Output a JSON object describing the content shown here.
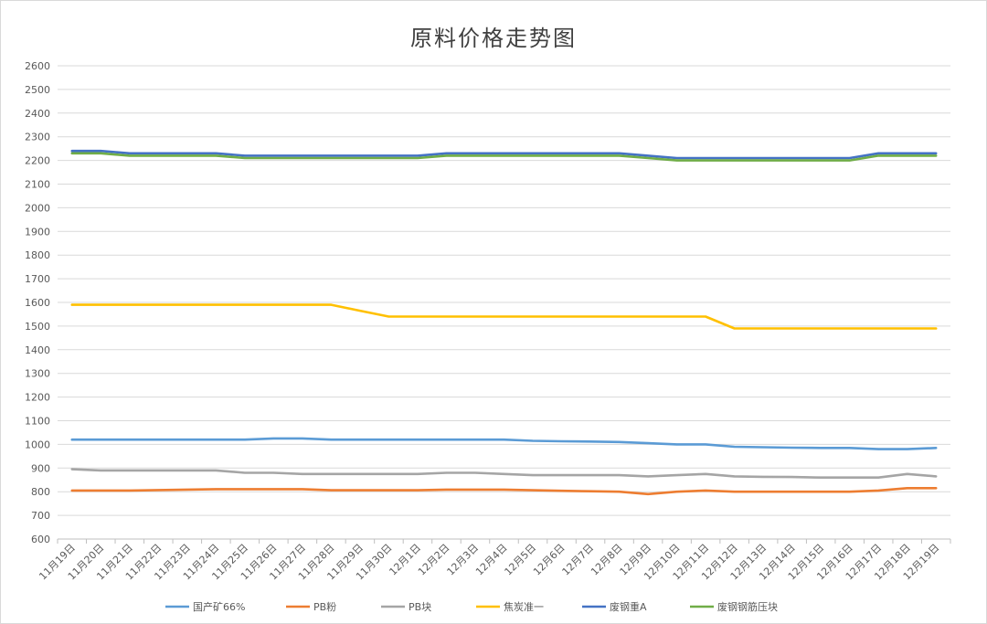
{
  "chart_data": {
    "type": "line",
    "title": "原料价格走势图",
    "xlabel": "",
    "ylabel": "",
    "ylim": [
      600,
      2600
    ],
    "ytick_step": 100,
    "grid": true,
    "legend_position": "bottom",
    "categories": [
      "11月19日",
      "11月20日",
      "11月21日",
      "11月22日",
      "11月23日",
      "11月24日",
      "11月25日",
      "11月26日",
      "11月27日",
      "11月28日",
      "11月29日",
      "11月30日",
      "12月1日",
      "12月2日",
      "12月3日",
      "12月4日",
      "12月5日",
      "12月6日",
      "12月7日",
      "12月8日",
      "12月9日",
      "12月10日",
      "12月11日",
      "12月12日",
      "12月13日",
      "12月14日",
      "12月15日",
      "12月16日",
      "12月17日",
      "12月18日",
      "12月19日"
    ],
    "series": [
      {
        "name": "国产矿66%",
        "color": "#5b9bd5",
        "values": [
          1020,
          1020,
          1020,
          1020,
          1020,
          1020,
          1020,
          1025,
          1025,
          1020,
          1020,
          1020,
          1020,
          1020,
          1020,
          1020,
          1015,
          1013,
          1012,
          1010,
          1005,
          1000,
          1000,
          990,
          988,
          986,
          985,
          985,
          980,
          980,
          985
        ]
      },
      {
        "name": "PB粉",
        "color": "#ed7d31",
        "values": [
          805,
          805,
          805,
          807,
          809,
          811,
          811,
          811,
          811,
          806,
          806,
          806,
          806,
          809,
          809,
          809,
          806,
          804,
          802,
          800,
          790,
          800,
          805,
          800,
          800,
          800,
          800,
          800,
          805,
          815,
          815
        ]
      },
      {
        "name": "PB块",
        "color": "#a5a5a5",
        "values": [
          895,
          890,
          890,
          890,
          890,
          890,
          880,
          880,
          875,
          875,
          875,
          875,
          875,
          880,
          880,
          875,
          870,
          870,
          870,
          870,
          865,
          870,
          875,
          865,
          863,
          862,
          860,
          860,
          860,
          875,
          865
        ]
      },
      {
        "name": "焦炭准一",
        "color": "#ffc000",
        "values": [
          1590,
          1590,
          1590,
          1590,
          1590,
          1590,
          1590,
          1590,
          1590,
          1590,
          1565,
          1540,
          1540,
          1540,
          1540,
          1540,
          1540,
          1540,
          1540,
          1540,
          1540,
          1540,
          1540,
          1490,
          1490,
          1490,
          1490,
          1490,
          1490,
          1490,
          1490
        ]
      },
      {
        "name": "废钢重A",
        "color": "#4472c4",
        "values": [
          2240,
          2240,
          2230,
          2230,
          2230,
          2230,
          2220,
          2220,
          2220,
          2220,
          2220,
          2220,
          2220,
          2230,
          2230,
          2230,
          2230,
          2230,
          2230,
          2230,
          2220,
          2210,
          2210,
          2210,
          2210,
          2210,
          2210,
          2210,
          2230,
          2230,
          2230
        ]
      },
      {
        "name": "废钢钢筋压块",
        "color": "#70ad47",
        "values": [
          2230,
          2230,
          2220,
          2220,
          2220,
          2220,
          2210,
          2210,
          2210,
          2210,
          2210,
          2210,
          2210,
          2220,
          2220,
          2220,
          2220,
          2220,
          2220,
          2220,
          2210,
          2200,
          2200,
          2200,
          2200,
          2200,
          2200,
          2200,
          2220,
          2220,
          2220
        ]
      }
    ]
  }
}
